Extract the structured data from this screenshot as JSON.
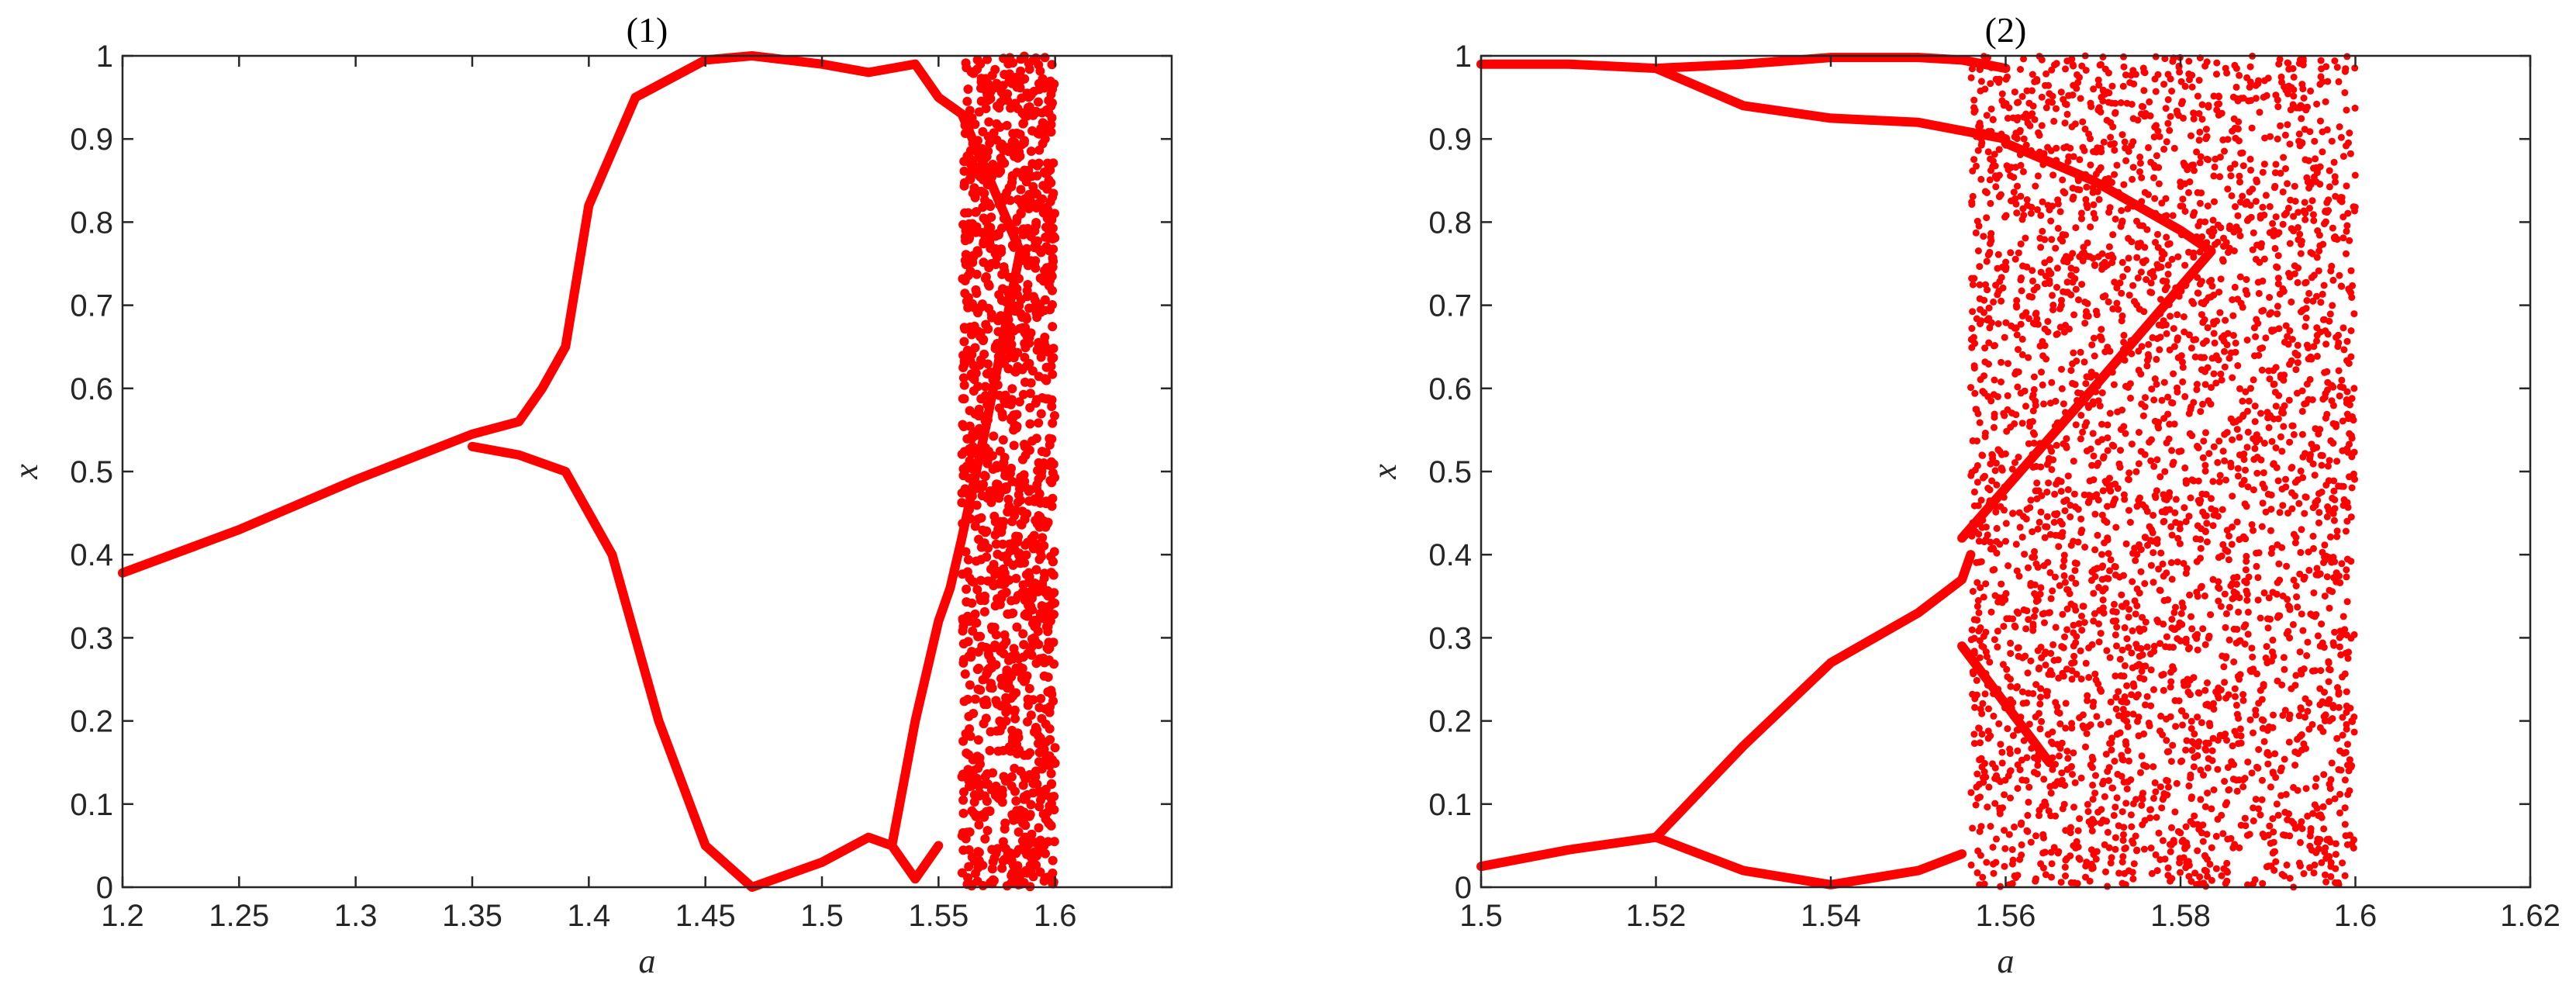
{
  "chart_data": [
    {
      "type": "scatter",
      "title": "(1)",
      "xlabel": "a",
      "ylabel": "x",
      "xlim": [
        1.2,
        1.65
      ],
      "ylim": [
        0,
        1
      ],
      "xticks": [
        "1.2",
        "1.25",
        "1.3",
        "1.35",
        "1.4",
        "1.45",
        "1.5",
        "1.55",
        "1.6"
      ],
      "yticks": [
        "0",
        "0.1",
        "0.2",
        "0.3",
        "0.4",
        "0.5",
        "0.6",
        "0.7",
        "0.8",
        "0.9",
        "1"
      ],
      "grid": false,
      "color": "#ff0000",
      "series": [
        {
          "values": [
            [
              1.2,
              0.378
            ],
            [
              1.25,
              0.43
            ],
            [
              1.3,
              0.49
            ],
            [
              1.35,
              0.545
            ],
            [
              1.37,
              0.56
            ],
            [
              1.38,
              0.6
            ],
            [
              1.39,
              0.65
            ],
            [
              1.4,
              0.82
            ],
            [
              1.42,
              0.95
            ],
            [
              1.45,
              0.995
            ],
            [
              1.47,
              1.0
            ],
            [
              1.5,
              0.99
            ],
            [
              1.52,
              0.98
            ],
            [
              1.54,
              0.99
            ],
            [
              1.55,
              0.95
            ],
            [
              1.56,
              0.93
            ],
            [
              1.585,
              0.765
            ]
          ]
        },
        {
          "values": [
            [
              1.35,
              0.53
            ],
            [
              1.37,
              0.52
            ],
            [
              1.39,
              0.5
            ],
            [
              1.41,
              0.4
            ],
            [
              1.43,
              0.2
            ],
            [
              1.45,
              0.05
            ],
            [
              1.47,
              0.0
            ],
            [
              1.5,
              0.03
            ],
            [
              1.52,
              0.06
            ],
            [
              1.53,
              0.05
            ],
            [
              1.54,
              0.01
            ],
            [
              1.55,
              0.05
            ]
          ]
        },
        {
          "values": [
            [
              1.53,
              0.05
            ],
            [
              1.54,
              0.2
            ],
            [
              1.55,
              0.32
            ],
            [
              1.555,
              0.36
            ],
            [
              1.56,
              0.42
            ],
            [
              1.57,
              0.55
            ],
            [
              1.585,
              0.765
            ]
          ]
        },
        {
          "chaotic_band": [
            1.56,
            1.6
          ]
        }
      ]
    },
    {
      "type": "scatter",
      "title": "(2)",
      "xlabel": "a",
      "ylabel": "x",
      "xlim": [
        1.5,
        1.62
      ],
      "ylim": [
        0,
        1
      ],
      "xticks": [
        "1.5",
        "1.52",
        "1.54",
        "1.56",
        "1.58",
        "1.6",
        "1.62"
      ],
      "yticks": [
        "0",
        "0.1",
        "0.2",
        "0.3",
        "0.4",
        "0.5",
        "0.6",
        "0.7",
        "0.8",
        "0.9",
        "1"
      ],
      "grid": false,
      "color": "#ff0000",
      "series": [
        {
          "values": [
            [
              1.5,
              0.99
            ],
            [
              1.51,
              0.99
            ],
            [
              1.52,
              0.985
            ],
            [
              1.53,
              0.99
            ],
            [
              1.54,
              0.998
            ],
            [
              1.55,
              0.998
            ],
            [
              1.555,
              0.995
            ],
            [
              1.56,
              0.985
            ]
          ]
        },
        {
          "values": [
            [
              1.52,
              0.985
            ],
            [
              1.53,
              0.94
            ],
            [
              1.54,
              0.925
            ],
            [
              1.55,
              0.92
            ],
            [
              1.555,
              0.91
            ],
            [
              1.56,
              0.9
            ]
          ]
        },
        {
          "values": [
            [
              1.5,
              0.025
            ],
            [
              1.51,
              0.045
            ],
            [
              1.52,
              0.06
            ],
            [
              1.53,
              0.17
            ],
            [
              1.54,
              0.27
            ],
            [
              1.55,
              0.33
            ],
            [
              1.555,
              0.37
            ],
            [
              1.556,
              0.4
            ]
          ]
        },
        {
          "values": [
            [
              1.52,
              0.06
            ],
            [
              1.53,
              0.02
            ],
            [
              1.54,
              0.003
            ],
            [
              1.55,
              0.02
            ],
            [
              1.555,
              0.04
            ]
          ]
        },
        {
          "values": [
            [
              1.555,
              0.29
            ],
            [
              1.56,
              0.22
            ],
            [
              1.565,
              0.15
            ]
          ]
        },
        {
          "values": [
            [
              1.555,
              0.42
            ],
            [
              1.56,
              0.48
            ],
            [
              1.57,
              0.6
            ],
            [
              1.5835,
              0.765
            ]
          ]
        },
        {
          "values": [
            [
              1.56,
              0.895
            ],
            [
              1.57,
              0.85
            ],
            [
              1.58,
              0.79
            ],
            [
              1.5835,
              0.765
            ]
          ]
        },
        {
          "chaotic_band": [
            1.556,
            1.6
          ]
        }
      ]
    }
  ]
}
